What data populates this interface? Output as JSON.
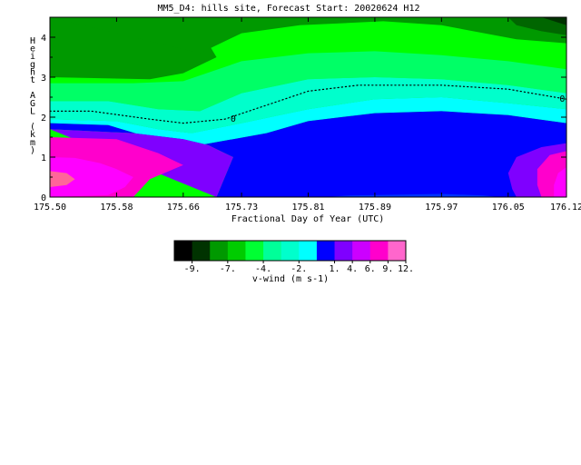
{
  "chart_data": {
    "type": "heatmap",
    "title": "MM5_D4: hills site,  Forecast Start: 20020624 H12",
    "xlabel": "Fractional Day of Year (UTC)",
    "ylabel_chars": [
      "H",
      "e",
      "i",
      "g",
      "h",
      "t",
      "",
      "A",
      "G",
      "L",
      "",
      "(",
      "k",
      "m",
      ")"
    ],
    "x_ticks": [
      "175.50",
      "175.58",
      "175.66",
      "175.73",
      "175.81",
      "175.89",
      "175.97",
      "176.05",
      "176.12"
    ],
    "x_tick_values": [
      175.5,
      175.58,
      175.66,
      175.73,
      175.81,
      175.89,
      175.97,
      176.05,
      176.12
    ],
    "xlim": [
      175.5,
      176.12
    ],
    "y_ticks": [
      "0",
      "1",
      "2",
      "3",
      "4"
    ],
    "y_tick_values": [
      0,
      1,
      2,
      3,
      4
    ],
    "ylim": [
      0,
      4.5
    ],
    "contour_label": "0",
    "zero_contour": [
      [
        175.5,
        2.15
      ],
      [
        175.55,
        2.15
      ],
      [
        175.62,
        1.95
      ],
      [
        175.66,
        1.85
      ],
      [
        175.71,
        1.95
      ],
      [
        175.76,
        2.3
      ],
      [
        175.81,
        2.65
      ],
      [
        175.87,
        2.8
      ],
      [
        175.97,
        2.8
      ],
      [
        176.05,
        2.7
      ],
      [
        176.12,
        2.45
      ]
    ],
    "bands": [
      {
        "color": "#00ff00",
        "upper": [
          [
            175.5,
            4.5
          ],
          [
            176.12,
            4.5
          ]
        ],
        "lower": [
          [
            175.5,
            2.85
          ],
          [
            175.6,
            2.85
          ],
          [
            175.66,
            2.9
          ],
          [
            175.73,
            3.4
          ],
          [
            175.81,
            3.6
          ],
          [
            175.89,
            3.65
          ],
          [
            175.97,
            3.55
          ],
          [
            176.05,
            3.4
          ],
          [
            176.12,
            3.2
          ]
        ]
      },
      {
        "color": "#00ff66",
        "upper": [
          [
            175.5,
            2.85
          ],
          [
            175.6,
            2.85
          ],
          [
            175.66,
            2.9
          ],
          [
            175.73,
            3.4
          ],
          [
            175.81,
            3.6
          ],
          [
            175.89,
            3.65
          ],
          [
            175.97,
            3.55
          ],
          [
            176.05,
            3.4
          ],
          [
            176.12,
            3.2
          ]
        ],
        "lower": [
          [
            175.5,
            2.4
          ],
          [
            175.57,
            2.4
          ],
          [
            175.63,
            2.2
          ],
          [
            175.68,
            2.15
          ],
          [
            175.73,
            2.6
          ],
          [
            175.81,
            2.95
          ],
          [
            175.89,
            3.0
          ],
          [
            175.97,
            2.95
          ],
          [
            176.05,
            2.8
          ],
          [
            176.12,
            2.6
          ]
        ]
      },
      {
        "color": "#00ffcc",
        "upper": [
          [
            175.5,
            2.4
          ],
          [
            175.57,
            2.4
          ],
          [
            175.63,
            2.2
          ],
          [
            175.68,
            2.15
          ],
          [
            175.73,
            2.6
          ],
          [
            175.81,
            2.95
          ],
          [
            175.89,
            3.0
          ],
          [
            175.97,
            2.95
          ],
          [
            176.05,
            2.8
          ],
          [
            176.12,
            2.6
          ]
        ],
        "lower": [
          [
            175.5,
            1.95
          ],
          [
            175.58,
            1.9
          ],
          [
            175.63,
            1.7
          ],
          [
            175.67,
            1.6
          ],
          [
            175.73,
            1.85
          ],
          [
            175.81,
            2.2
          ],
          [
            175.89,
            2.45
          ],
          [
            175.97,
            2.5
          ],
          [
            176.05,
            2.35
          ],
          [
            176.12,
            2.2
          ]
        ]
      },
      {
        "color": "#00ffff",
        "upper": [
          [
            175.5,
            1.95
          ],
          [
            175.58,
            1.9
          ],
          [
            175.63,
            1.7
          ],
          [
            175.67,
            1.6
          ],
          [
            175.73,
            1.85
          ],
          [
            175.81,
            2.2
          ],
          [
            175.89,
            2.45
          ],
          [
            175.97,
            2.5
          ],
          [
            176.05,
            2.35
          ],
          [
            176.12,
            2.2
          ]
        ],
        "lower": [
          [
            175.5,
            1.85
          ],
          [
            175.57,
            1.8
          ],
          [
            175.61,
            1.55
          ],
          [
            175.65,
            1.35
          ],
          [
            175.68,
            1.3
          ],
          [
            175.72,
            1.45
          ],
          [
            175.76,
            1.6
          ],
          [
            175.81,
            1.9
          ],
          [
            175.89,
            2.1
          ],
          [
            175.97,
            2.15
          ],
          [
            176.05,
            2.05
          ],
          [
            176.12,
            1.85
          ]
        ]
      },
      {
        "color": "#0000ff",
        "upper": [
          [
            175.5,
            1.85
          ],
          [
            175.57,
            1.8
          ],
          [
            175.61,
            1.55
          ],
          [
            175.65,
            1.35
          ],
          [
            175.68,
            1.3
          ],
          [
            175.72,
            1.45
          ],
          [
            175.76,
            1.6
          ],
          [
            175.81,
            1.9
          ],
          [
            175.89,
            2.1
          ],
          [
            175.97,
            2.15
          ],
          [
            176.05,
            2.05
          ],
          [
            176.12,
            1.85
          ]
        ],
        "lower": [
          [
            175.5,
            1.7
          ],
          [
            175.6,
            1.6
          ],
          [
            175.66,
            1.45
          ],
          [
            175.69,
            1.3
          ],
          [
            175.7,
            1.2
          ],
          [
            175.72,
            1.0
          ],
          [
            175.71,
            0.5
          ],
          [
            175.7,
            0.0
          ],
          [
            176.12,
            0.0
          ]
        ]
      },
      {
        "color": "#7f00ff",
        "upper": [
          [
            175.5,
            1.7
          ],
          [
            175.6,
            1.6
          ],
          [
            175.66,
            1.45
          ],
          [
            175.69,
            1.3
          ],
          [
            175.7,
            1.2
          ],
          [
            175.72,
            1.0
          ],
          [
            175.71,
            0.5
          ],
          [
            175.7,
            0.0
          ]
        ],
        "lower": [
          [
            175.7,
            0.0
          ],
          [
            175.5,
            0.0
          ]
        ]
      }
    ],
    "blobs": [
      {
        "color": "#006600",
        "points": [
          [
            175.5,
            3.5
          ],
          [
            175.54,
            3.95
          ],
          [
            175.56,
            4.05
          ],
          [
            175.59,
            3.9
          ],
          [
            175.6,
            3.55
          ],
          [
            175.58,
            3.2
          ],
          [
            175.54,
            3.1
          ],
          [
            175.5,
            3.15
          ]
        ]
      },
      {
        "color": "#009900",
        "points": [
          [
            175.5,
            4.5
          ],
          [
            175.65,
            4.5
          ],
          [
            175.68,
            4.2
          ],
          [
            175.7,
            3.5
          ],
          [
            175.66,
            3.1
          ],
          [
            175.62,
            2.95
          ],
          [
            175.5,
            3.0
          ]
        ]
      },
      {
        "color": "#009900",
        "points": [
          [
            175.5,
            4.5
          ],
          [
            176.12,
            4.5
          ],
          [
            176.12,
            3.85
          ],
          [
            176.06,
            3.95
          ],
          [
            175.97,
            4.3
          ],
          [
            175.9,
            4.4
          ],
          [
            175.8,
            4.3
          ],
          [
            175.73,
            4.1
          ],
          [
            175.68,
            3.6
          ]
        ]
      },
      {
        "color": "#006600",
        "points": [
          [
            176.05,
            4.5
          ],
          [
            176.12,
            4.5
          ],
          [
            176.12,
            4.05
          ],
          [
            176.09,
            4.15
          ],
          [
            176.06,
            4.3
          ]
        ]
      },
      {
        "color": "#003300",
        "points": [
          [
            176.09,
            4.5
          ],
          [
            176.12,
            4.5
          ],
          [
            176.12,
            4.3
          ]
        ]
      },
      {
        "color": "#ff00cc",
        "points": [
          [
            175.5,
            1.5
          ],
          [
            175.58,
            1.45
          ],
          [
            175.63,
            1.1
          ],
          [
            175.66,
            0.8
          ],
          [
            175.62,
            0.45
          ],
          [
            175.6,
            0.0
          ],
          [
            175.5,
            0.0
          ]
        ]
      },
      {
        "color": "#ff00ff",
        "points": [
          [
            175.5,
            1.0
          ],
          [
            175.53,
            0.98
          ],
          [
            175.56,
            0.85
          ],
          [
            175.58,
            0.7
          ],
          [
            175.6,
            0.5
          ],
          [
            175.59,
            0.25
          ],
          [
            175.57,
            0.05
          ],
          [
            175.5,
            0.0
          ]
        ]
      },
      {
        "color": "#ff6699",
        "points": [
          [
            175.5,
            0.65
          ],
          [
            175.52,
            0.6
          ],
          [
            175.53,
            0.45
          ],
          [
            175.52,
            0.3
          ],
          [
            175.5,
            0.25
          ]
        ]
      },
      {
        "color": "#7f00ff",
        "points": [
          [
            176.06,
            0.0
          ],
          [
            176.12,
            0.0
          ],
          [
            176.12,
            1.35
          ],
          [
            176.09,
            1.25
          ],
          [
            176.06,
            1.0
          ],
          [
            176.05,
            0.6
          ],
          [
            176.055,
            0.2
          ]
        ]
      },
      {
        "color": "#ff00cc",
        "points": [
          [
            176.09,
            0.0
          ],
          [
            176.12,
            0.0
          ],
          [
            176.12,
            1.15
          ],
          [
            176.1,
            1.05
          ],
          [
            176.085,
            0.7
          ],
          [
            176.085,
            0.3
          ]
        ]
      },
      {
        "color": "#ff00ff",
        "points": [
          [
            176.105,
            0.0
          ],
          [
            176.12,
            0.0
          ],
          [
            176.12,
            0.75
          ],
          [
            176.11,
            0.6
          ],
          [
            176.105,
            0.3
          ]
        ]
      },
      {
        "color": "#0033ff",
        "points": [
          [
            175.83,
            0.0
          ],
          [
            175.86,
            0.04
          ],
          [
            175.97,
            0.08
          ],
          [
            176.02,
            0.04
          ],
          [
            176.04,
            0.0
          ]
        ]
      }
    ],
    "colorbar": {
      "colors": [
        "#000000",
        "#003300",
        "#009900",
        "#00cc00",
        "#00ff33",
        "#00ff99",
        "#00ffcc",
        "#00ffff",
        "#0000ff",
        "#7f00ff",
        "#cc00ff",
        "#ff00cc",
        "#ff66cc"
      ],
      "labels": [
        "-9.",
        "-7.",
        "-4.",
        "-2.",
        "1.",
        "4.",
        "6.",
        "9.",
        "12."
      ],
      "label_boundaries": [
        1,
        3,
        5,
        7,
        9,
        10,
        11,
        12,
        13
      ],
      "title": "v-wind (m s-1)"
    }
  }
}
